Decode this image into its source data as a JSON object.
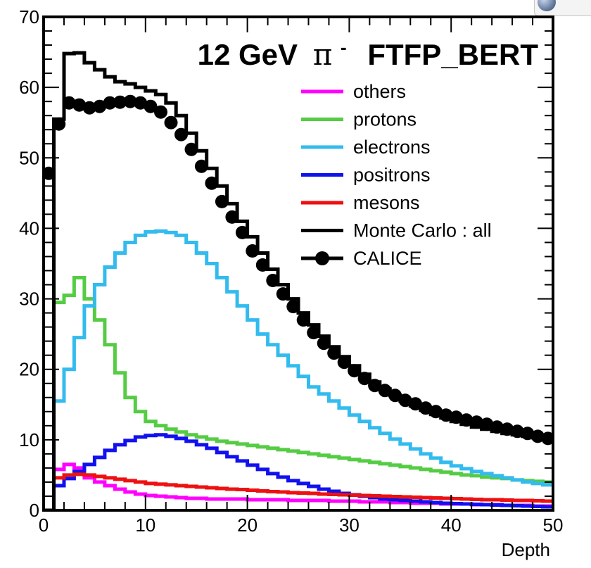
{
  "chart_data": {
    "type": "histogram",
    "title": "12 GeV π⁻  FTFP_BERT",
    "title_parts": {
      "energy": "12 GeV",
      "particle": "π",
      "charge": "-",
      "physics_list": "FTFP_BERT"
    },
    "xlabel": "Depth",
    "ylabel": "",
    "xlim": [
      0,
      50
    ],
    "ylim": [
      0,
      70
    ],
    "x_ticks": [
      0,
      10,
      20,
      30,
      40,
      50
    ],
    "y_ticks": [
      0,
      10,
      20,
      30,
      40,
      50,
      60,
      70
    ],
    "bin_edges_start": 0,
    "bin_width": 1,
    "legend_position": "top-right",
    "series": [
      {
        "name": "others",
        "style": "histogram",
        "color": "#ff00ff",
        "values": [
          0,
          5.8,
          6.5,
          6.0,
          4.6,
          4.0,
          3.5,
          3.0,
          2.6,
          2.3,
          2.1,
          2.0,
          1.9,
          1.8,
          1.7,
          1.7,
          1.6,
          1.6,
          1.6,
          1.6,
          1.5,
          1.5,
          1.5,
          1.5,
          1.4,
          1.4,
          1.4,
          1.4,
          1.3,
          1.3,
          1.3,
          1.2,
          1.2,
          1.2,
          1.1,
          1.1,
          1.0,
          1.0,
          1.0,
          0.9,
          0.9,
          0.9,
          0.8,
          0.8,
          0.8,
          0.7,
          0.7,
          0.7,
          0.6,
          0.6
        ]
      },
      {
        "name": "protons",
        "style": "histogram",
        "color": "#55cc44",
        "values": [
          0,
          29.5,
          30.5,
          33.0,
          30.0,
          27.0,
          23.5,
          19.5,
          16.0,
          14.0,
          12.6,
          12.0,
          11.5,
          11.1,
          10.7,
          10.4,
          10.1,
          9.8,
          9.6,
          9.4,
          9.2,
          9.0,
          8.8,
          8.6,
          8.4,
          8.2,
          8.0,
          7.8,
          7.6,
          7.4,
          7.2,
          7.0,
          6.8,
          6.6,
          6.4,
          6.2,
          6.0,
          5.8,
          5.6,
          5.4,
          5.2,
          5.0,
          4.9,
          4.7,
          4.6,
          4.5,
          4.3,
          4.2,
          4.1,
          4.0
        ]
      },
      {
        "name": "electrons",
        "style": "histogram",
        "color": "#33bbee",
        "values": [
          0,
          15.5,
          20.0,
          24.5,
          29.0,
          32.0,
          34.5,
          36.5,
          38.0,
          39.0,
          39.5,
          39.6,
          39.4,
          39.0,
          38.0,
          36.5,
          35.0,
          33.0,
          31.0,
          29.0,
          27.0,
          25.0,
          23.5,
          22.0,
          20.5,
          19.0,
          17.5,
          16.5,
          15.5,
          14.5,
          13.5,
          12.6,
          11.7,
          10.9,
          10.1,
          9.4,
          8.7,
          8.0,
          7.4,
          6.8,
          6.3,
          5.9,
          5.5,
          5.2,
          4.9,
          4.6,
          4.3,
          4.0,
          3.8,
          3.6
        ]
      },
      {
        "name": "positrons",
        "style": "histogram",
        "color": "#1111ee",
        "values": [
          0,
          3.5,
          4.5,
          5.5,
          6.5,
          7.5,
          8.5,
          9.3,
          9.9,
          10.4,
          10.6,
          10.7,
          10.5,
          10.2,
          9.8,
          9.3,
          8.8,
          8.2,
          7.6,
          7.0,
          6.4,
          5.8,
          5.2,
          4.7,
          4.2,
          3.8,
          3.4,
          3.0,
          2.7,
          2.4,
          2.2,
          2.0,
          1.8,
          1.6,
          1.5,
          1.4,
          1.3,
          1.2,
          1.1,
          1.0,
          0.95,
          0.9,
          0.85,
          0.8,
          0.75,
          0.7,
          0.65,
          0.6,
          0.55,
          0.5
        ]
      },
      {
        "name": "mesons",
        "style": "histogram",
        "color": "#ee1111",
        "values": [
          0,
          4.6,
          5.0,
          5.1,
          5.0,
          4.8,
          4.6,
          4.4,
          4.2,
          4.0,
          3.8,
          3.7,
          3.6,
          3.5,
          3.4,
          3.3,
          3.2,
          3.1,
          3.0,
          2.95,
          2.85,
          2.75,
          2.65,
          2.6,
          2.5,
          2.45,
          2.4,
          2.3,
          2.25,
          2.2,
          2.15,
          2.1,
          2.05,
          2.0,
          1.95,
          1.9,
          1.85,
          1.8,
          1.75,
          1.7,
          1.65,
          1.6,
          1.55,
          1.5,
          1.5,
          1.45,
          1.4,
          1.4,
          1.35,
          1.3
        ]
      },
      {
        "name": "Monte Carlo : all",
        "style": "histogram",
        "color": "#000000",
        "values": [
          0,
          55.5,
          64.8,
          64.9,
          63.5,
          62.5,
          61.5,
          60.8,
          60.5,
          60.0,
          59.5,
          59.0,
          57.8,
          56.0,
          53.5,
          51.0,
          48.5,
          46.0,
          43.5,
          41.0,
          38.8,
          36.5,
          34.2,
          32.0,
          30.0,
          28.0,
          26.3,
          24.7,
          23.2,
          21.8,
          20.5,
          19.3,
          18.2,
          17.2,
          16.3,
          15.5,
          14.8,
          14.2,
          13.6,
          13.1,
          12.6,
          12.2,
          11.8,
          11.5,
          11.2,
          10.9,
          10.7,
          10.5,
          10.3,
          10.1
        ]
      },
      {
        "name": "CALICE",
        "style": "markers",
        "color": "#000000",
        "x": [
          0.5,
          1.5,
          2.5,
          3.5,
          4.5,
          5.5,
          6.5,
          7.5,
          8.5,
          9.5,
          10.5,
          11.5,
          12.5,
          13.5,
          14.5,
          15.5,
          16.5,
          17.5,
          18.5,
          19.5,
          20.5,
          21.5,
          22.5,
          23.5,
          24.5,
          25.5,
          26.5,
          27.5,
          28.5,
          29.5,
          30.5,
          31.5,
          32.5,
          33.5,
          34.5,
          35.5,
          36.5,
          37.5,
          38.5,
          39.5,
          40.5,
          41.5,
          42.5,
          43.5,
          44.5,
          45.5,
          46.5,
          47.5,
          48.5,
          49.5
        ],
        "values": [
          47.8,
          54.8,
          57.8,
          57.5,
          57.1,
          57.3,
          57.8,
          57.9,
          58.0,
          57.8,
          57.3,
          56.5,
          55.0,
          53.3,
          51.2,
          48.8,
          46.4,
          43.8,
          41.6,
          39.4,
          36.8,
          34.8,
          32.6,
          30.7,
          28.9,
          27.0,
          25.2,
          23.7,
          22.3,
          21.0,
          19.8,
          18.7,
          17.7,
          17.0,
          16.3,
          15.6,
          15.1,
          14.5,
          14.0,
          13.5,
          13.2,
          12.8,
          12.5,
          12.2,
          11.8,
          11.5,
          11.2,
          10.9,
          10.5,
          10.2
        ]
      }
    ]
  }
}
